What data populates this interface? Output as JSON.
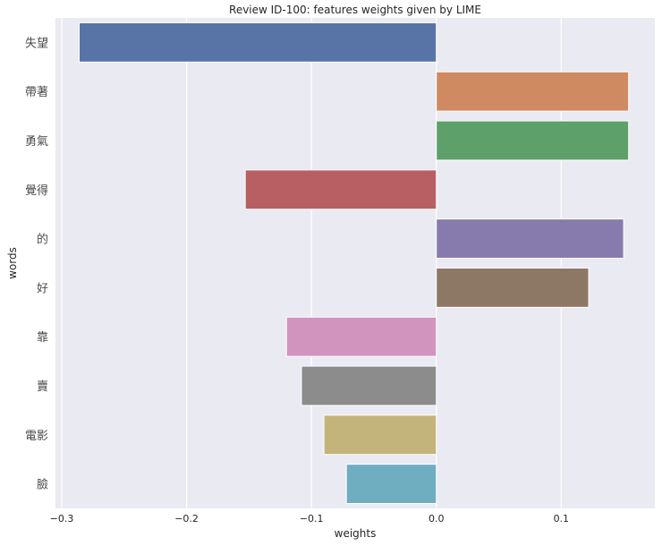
{
  "chart_data": {
    "type": "bar",
    "orientation": "horizontal",
    "title": "Review ID-100: features weights given by LIME",
    "xlabel": "weights",
    "ylabel": "words",
    "categories": [
      "失望",
      "帶著",
      "勇氣",
      "覺得",
      "的",
      "好",
      "靠",
      "賣",
      "電影",
      "臉"
    ],
    "values": [
      -0.286,
      0.154,
      0.154,
      -0.153,
      0.15,
      0.122,
      -0.12,
      -0.108,
      -0.09,
      -0.072
    ],
    "colors": [
      "#5874a6",
      "#cf8a62",
      "#5ea06a",
      "#b85f63",
      "#877bae",
      "#8d7865",
      "#d094bf",
      "#8c8c8c",
      "#c3b47b",
      "#6fadc1"
    ],
    "xlim": [
      -0.305,
      0.175
    ],
    "xticks": [
      -0.3,
      -0.2,
      -0.1,
      0.0,
      0.1
    ],
    "xtick_labels": [
      "−0.3",
      "−0.2",
      "−0.1",
      "0.0",
      "0.1"
    ],
    "grid": true,
    "background": "#eaeaf2"
  }
}
